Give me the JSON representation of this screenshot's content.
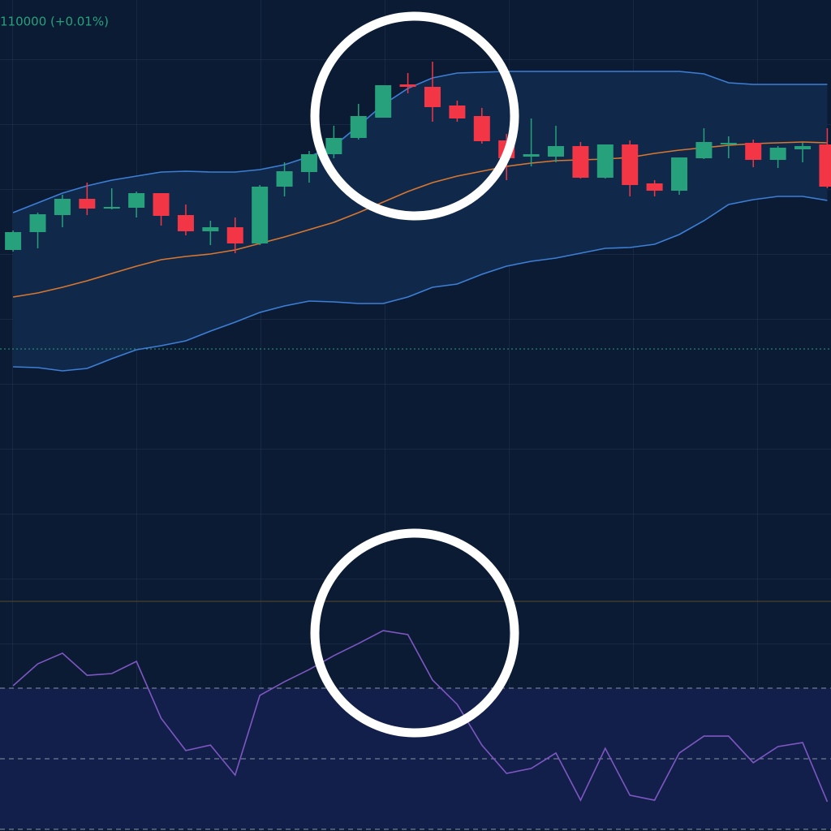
{
  "chart_data": [
    {
      "type": "candlestick",
      "header": "110000 (+0.01%)",
      "header_color": "#26a17b",
      "xlim": [
        -0.53,
        33.15
      ],
      "ylim": [
        306,
        1024
      ],
      "up_color": "#26a17b",
      "down_color": "#f23645",
      "open": [
        716,
        738,
        759,
        779,
        767,
        768,
        786,
        759,
        739,
        744,
        724,
        794,
        812,
        834,
        854,
        879,
        920,
        917,
        894,
        881,
        851,
        831,
        831,
        844,
        805,
        846,
        798,
        789,
        829,
        846,
        848,
        827,
        840,
        846
      ],
      "high": [
        740,
        762,
        784,
        799,
        792,
        788,
        786,
        772,
        752,
        756,
        796,
        824,
        838,
        869,
        896,
        919,
        934,
        948,
        900,
        891,
        859,
        878,
        869,
        849,
        846,
        851,
        802,
        830,
        866,
        856,
        852,
        844,
        848,
        866
      ],
      "low": [
        714,
        718,
        744,
        759,
        766,
        756,
        746,
        734,
        722,
        712,
        722,
        782,
        799,
        829,
        852,
        879,
        909,
        874,
        874,
        847,
        802,
        819,
        824,
        804,
        804,
        782,
        782,
        784,
        828,
        829,
        818,
        817,
        824,
        792
      ],
      "close": [
        738,
        760,
        779,
        767,
        769,
        786,
        758,
        739,
        744,
        724,
        794,
        813,
        834,
        854,
        881,
        919,
        917,
        892,
        878,
        850,
        829,
        834,
        844,
        805,
        846,
        796,
        789,
        830,
        849,
        848,
        827,
        842,
        844,
        794
      ],
      "band_fill": "#10294a",
      "series": [
        {
          "color": "#3d7fd6",
          "values": [
            762,
            774,
            786,
            795,
            802,
            807,
            812,
            813,
            812,
            812,
            815,
            821,
            831,
            844,
            869,
            895,
            915,
            928,
            934,
            935,
            936,
            936,
            936,
            936,
            936,
            936,
            936,
            936,
            933,
            922,
            920,
            920,
            920,
            920
          ]
        },
        {
          "color": "#d9772f",
          "values": [
            658,
            663,
            670,
            678,
            687,
            696,
            704,
            708,
            711,
            716,
            724,
            732,
            741,
            750,
            762,
            775,
            788,
            799,
            807,
            813,
            819,
            823,
            826,
            827,
            828,
            830,
            835,
            839,
            842,
            845,
            847,
            848,
            849,
            848
          ]
        },
        {
          "color": "#3d7fd6",
          "values": [
            572,
            571,
            567,
            570,
            582,
            593,
            598,
            604,
            616,
            627,
            639,
            647,
            653,
            652,
            650,
            650,
            658,
            670,
            674,
            686,
            696,
            702,
            706,
            712,
            718,
            719,
            723,
            735,
            752,
            772,
            778,
            782,
            782,
            777
          ]
        }
      ],
      "price_line": 594,
      "price_line_color": "#26a17b"
    },
    {
      "type": "line",
      "xlim": [
        -0.53,
        33.15
      ],
      "ylim": [
        0,
        100
      ],
      "color": "#7e57c2",
      "values": [
        58.5,
        67.3,
        71.6,
        62.7,
        63.4,
        68.3,
        45.4,
        32.4,
        34.6,
        22.5,
        54.6,
        60.1,
        65.0,
        70.6,
        75.5,
        80.7,
        79.1,
        60.8,
        51.0,
        34.6,
        23.2,
        25.2,
        31.4,
        12.4,
        33.3,
        14.4,
        12.4,
        31.4,
        38.2,
        38.2,
        27.5,
        34.0,
        35.6,
        11.8
      ],
      "levels": [
        57.5,
        29.1,
        0.7
      ],
      "level_color": "#8a93a8",
      "band_fill": "#121f4a"
    }
  ]
}
